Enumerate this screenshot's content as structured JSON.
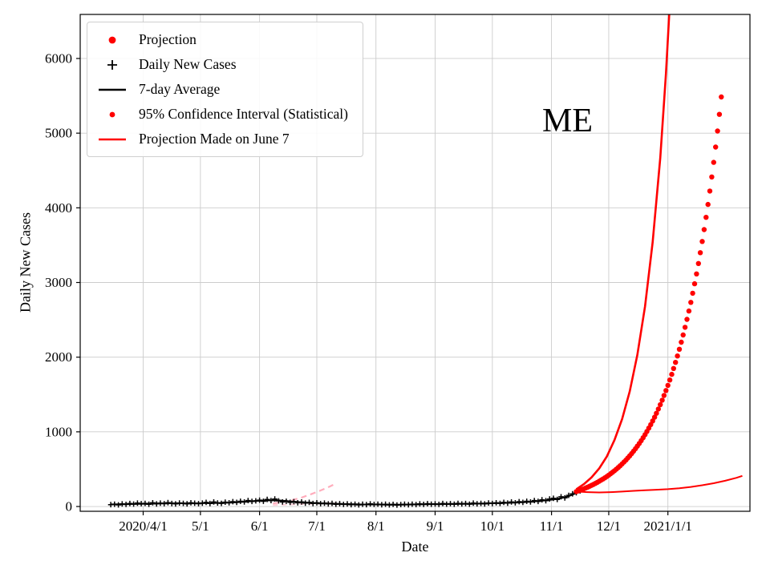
{
  "figure": {
    "annotation": "ME",
    "xlabel": "Date",
    "ylabel": "Daily New Cases"
  },
  "legend": {
    "items": [
      {
        "id": "projection",
        "label": "Projection",
        "marker": "dot",
        "color": "#ff0000",
        "dot_radius": 4.4
      },
      {
        "id": "daily-new-cases",
        "label": "Daily New Cases",
        "marker": "plus",
        "color": "#000000"
      },
      {
        "id": "seven-day-average",
        "label": "7-day Average",
        "marker": "line",
        "color": "#000000"
      },
      {
        "id": "confidence-interval",
        "label": "95% Confidence Interval (Statistical)",
        "marker": "dot",
        "color": "#ff0000",
        "dot_radius": 3.4
      },
      {
        "id": "projection-june7",
        "label": "Projection Made on June 7",
        "marker": "line",
        "color": "#ff0000"
      }
    ]
  },
  "chart_data": {
    "type": "scatter",
    "title": "ME",
    "xlabel": "Date",
    "ylabel": "Daily New Cases",
    "background": "#ffffff",
    "grid": true,
    "grid_color": "#cccccc",
    "x_axis": {
      "label": "Date",
      "day_zero_date": "2020/3/1",
      "domain": [
        -2,
        349
      ],
      "ticks": [
        {
          "day": 31,
          "label": "2020/4/1"
        },
        {
          "day": 61,
          "label": "5/1"
        },
        {
          "day": 92,
          "label": "6/1"
        },
        {
          "day": 122,
          "label": "7/1"
        },
        {
          "day": 153,
          "label": "8/1"
        },
        {
          "day": 184,
          "label": "9/1"
        },
        {
          "day": 214,
          "label": "10/1"
        },
        {
          "day": 245,
          "label": "11/1"
        },
        {
          "day": 275,
          "label": "12/1"
        },
        {
          "day": 306,
          "label": "2021/1/1"
        }
      ]
    },
    "y_axis": {
      "label": "Daily New Cases",
      "domain": [
        -64,
        6590
      ],
      "ticks": [
        0,
        1000,
        2000,
        3000,
        4000,
        5000,
        6000
      ]
    },
    "series": {
      "daily_new_cases": {
        "name": "Daily New Cases",
        "type": "plus-markers",
        "color": "#000000",
        "start_day": 14,
        "step": 2,
        "values": [
          25,
          30,
          22,
          35,
          28,
          40,
          33,
          45,
          38,
          42,
          30,
          50,
          35,
          45,
          38,
          52,
          40,
          35,
          48,
          42,
          36,
          50,
          44,
          38,
          45,
          55,
          40,
          60,
          48,
          42,
          58,
          50,
          65,
          55,
          70,
          60,
          80,
          68,
          75,
          85,
          70,
          95,
          80,
          100,
          75,
          60,
          70,
          55,
          65,
          50,
          60,
          45,
          55,
          40,
          50,
          38,
          45,
          35,
          42,
          30,
          38,
          28,
          35,
          25,
          32,
          22,
          30,
          25,
          35,
          28,
          32,
          24,
          30,
          22,
          28,
          20,
          26,
          30,
          24,
          32,
          26,
          35,
          28,
          38,
          30,
          35,
          28,
          40,
          32,
          38,
          30,
          42,
          34,
          40,
          32,
          45,
          36,
          42,
          35,
          48,
          40,
          50,
          42,
          55,
          45,
          60,
          50,
          65,
          55,
          70,
          60,
          80,
          68,
          90,
          78,
          100,
          110,
          95,
          130,
          115,
          150,
          170,
          185,
          210
        ]
      },
      "seven_day_average": {
        "name": "7-day Average",
        "type": "line",
        "color": "#000000",
        "start_day": 14,
        "step": 4,
        "values": [
          28,
          30,
          32,
          34,
          36,
          38,
          40,
          42,
          43,
          43,
          42,
          42,
          44,
          46,
          48,
          50,
          54,
          60,
          67,
          74,
          80,
          84,
          82,
          74,
          65,
          57,
          50,
          45,
          41,
          38,
          34,
          31,
          29,
          27,
          27,
          27,
          25,
          24,
          24,
          26,
          28,
          30,
          31,
          32,
          33,
          34,
          36,
          37,
          38,
          40,
          43,
          46,
          49,
          53,
          58,
          64,
          72,
          82,
          95,
          112,
          138,
          180
        ]
      },
      "projection": {
        "name": "Projection",
        "type": "dots",
        "color": "#ff0000",
        "start_day": 258,
        "step": 1,
        "values": [
          200,
          209,
          218,
          228,
          238,
          249,
          260,
          272,
          284,
          296,
          310,
          323,
          338,
          353,
          369,
          385,
          402,
          420,
          439,
          459,
          479,
          501,
          523,
          546,
          570,
          596,
          622,
          650,
          679,
          709,
          741,
          774,
          808,
          844,
          882,
          921,
          962,
          1005,
          1050,
          1096,
          1145,
          1196,
          1249,
          1305,
          1363,
          1424,
          1487,
          1553,
          1622,
          1694,
          1770,
          1848,
          1930,
          2016,
          2106,
          2200,
          2297,
          2400,
          2506,
          2618,
          2734,
          2856,
          2983,
          3115,
          3254,
          3399,
          3550,
          3708,
          3873,
          4045,
          4225,
          4413,
          4609,
          4814,
          5028,
          5252,
          5485
        ]
      },
      "ci_upper": {
        "name": "95% Confidence Interval upper bound",
        "type": "line",
        "color": "#ff0000",
        "points": [
          [
            258,
            230
          ],
          [
            262,
            300
          ],
          [
            266,
            390
          ],
          [
            270,
            510
          ],
          [
            274,
            670
          ],
          [
            278,
            890
          ],
          [
            282,
            1170
          ],
          [
            286,
            1540
          ],
          [
            290,
            2030
          ],
          [
            294,
            2680
          ],
          [
            298,
            3540
          ],
          [
            302,
            4670
          ],
          [
            305,
            5800
          ],
          [
            308,
            7200
          ]
        ]
      },
      "ci_lower": {
        "name": "95% Confidence Interval lower bound",
        "type": "line",
        "color": "#ff0000",
        "points": [
          [
            258,
            200
          ],
          [
            264,
            192
          ],
          [
            270,
            188
          ],
          [
            276,
            192
          ],
          [
            282,
            200
          ],
          [
            288,
            210
          ],
          [
            294,
            218
          ],
          [
            300,
            225
          ],
          [
            306,
            232
          ],
          [
            312,
            245
          ],
          [
            318,
            262
          ],
          [
            324,
            285
          ],
          [
            330,
            312
          ],
          [
            336,
            345
          ],
          [
            342,
            385
          ],
          [
            345,
            410
          ]
        ]
      },
      "projection_june7": {
        "name": "Projection Made on June 7",
        "type": "dashed-line",
        "color": "#ff9fb0",
        "points": [
          [
            99,
            40
          ],
          [
            104,
            60
          ],
          [
            109,
            85
          ],
          [
            114,
            120
          ],
          [
            119,
            165
          ],
          [
            124,
            215
          ],
          [
            129,
            270
          ],
          [
            132,
            310
          ]
        ]
      },
      "projection_june7_lower": {
        "name": "Projection Made on June 7 lower bound",
        "type": "dashed-line",
        "color": "#ffc4cf",
        "points": [
          [
            99,
            20
          ],
          [
            110,
            28
          ],
          [
            121,
            38
          ],
          [
            132,
            48
          ]
        ]
      }
    }
  }
}
